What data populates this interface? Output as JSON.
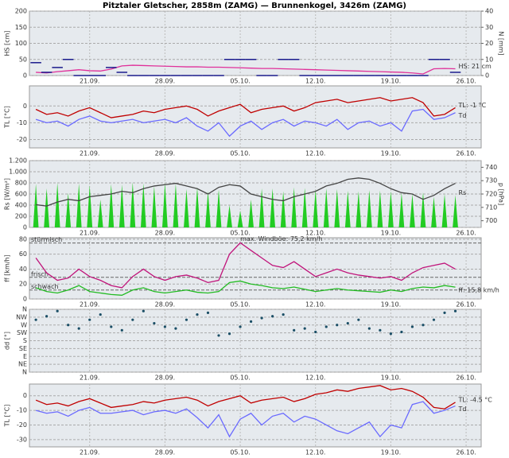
{
  "title": "Pitztaler Gletscher, 2858m (ZAMG) — Brunnenkogel, 3426m (ZAMG)",
  "chart_data": [
    {
      "type": "line",
      "ylabel": "HS [cm]",
      "y2label": "N [mm]",
      "x": [
        16,
        17,
        18,
        19,
        20,
        21,
        22,
        23,
        24,
        25,
        26,
        27,
        28,
        29,
        30,
        31,
        32,
        33,
        34,
        35,
        36,
        37,
        38,
        39,
        40,
        41,
        42,
        43,
        44,
        45,
        46,
        47,
        48,
        49,
        50,
        51,
        52,
        53,
        54,
        55
      ],
      "xlim": [
        15.4,
        57.4
      ],
      "xticks": [
        {
          "value": 21,
          "label": "21.09."
        },
        {
          "value": 28,
          "label": "28.09."
        },
        {
          "value": 35,
          "label": "05.10."
        },
        {
          "value": 42,
          "label": "12.10."
        },
        {
          "value": 49,
          "label": "19.10."
        },
        {
          "value": 56,
          "label": "26.10."
        }
      ],
      "ylim": [
        0,
        200
      ],
      "yticks": [
        0,
        50,
        100,
        150,
        200
      ],
      "y2lim": [
        0,
        40
      ],
      "y2ticks": [
        0,
        10,
        20,
        30,
        40
      ],
      "ycolor": "#e0309a",
      "y2color": "#1a1a8c",
      "series": [
        {
          "name": "HS",
          "kind": "line",
          "color": "#e0309a",
          "values": [
            10,
            8,
            12,
            15,
            18,
            15,
            14,
            20,
            30,
            32,
            31,
            30,
            29,
            28,
            27,
            27,
            26,
            26,
            25,
            24,
            23,
            22,
            22,
            21,
            20,
            19,
            18,
            17,
            16,
            15,
            14,
            13,
            12,
            11,
            10,
            8,
            5,
            21,
            22,
            21
          ]
        },
        {
          "name": "N",
          "kind": "step",
          "axis": "y2",
          "color": "#1a1a8c",
          "values": [
            8,
            2,
            5,
            10,
            0,
            0,
            0,
            5,
            2,
            0,
            0,
            0,
            0,
            0,
            0,
            0,
            0,
            0,
            10,
            10,
            10,
            0,
            0,
            10,
            10,
            0,
            0,
            0,
            0,
            0,
            0,
            0,
            0,
            0,
            0,
            0,
            0,
            10,
            10,
            2
          ]
        }
      ],
      "annotations": [
        {
          "text": "HS: 21 cm",
          "series": 0,
          "at": "last"
        }
      ]
    },
    {
      "type": "line",
      "ylabel": "TL [°C]",
      "x": [
        16,
        17,
        18,
        19,
        20,
        21,
        22,
        23,
        24,
        25,
        26,
        27,
        28,
        29,
        30,
        31,
        32,
        33,
        34,
        35,
        36,
        37,
        38,
        39,
        40,
        41,
        42,
        43,
        44,
        45,
        46,
        47,
        48,
        49,
        50,
        51,
        52,
        53,
        54,
        55
      ],
      "xlim": [
        15.4,
        57.4
      ],
      "xticks": [
        {
          "value": 21,
          "label": "21.09."
        },
        {
          "value": 28,
          "label": "28.09."
        },
        {
          "value": 35,
          "label": "05.10."
        },
        {
          "value": 42,
          "label": "12.10."
        },
        {
          "value": 49,
          "label": "19.10."
        },
        {
          "value": 56,
          "label": "26.10."
        }
      ],
      "ylim": [
        -25,
        12
      ],
      "yticks": [
        -20,
        -10,
        0
      ],
      "ycolor": "#c00000",
      "series": [
        {
          "name": "TL",
          "kind": "line",
          "color": "#c00000",
          "values": [
            -2,
            -5,
            -4,
            -6,
            -3,
            -1,
            -4,
            -7,
            -6,
            -5,
            -3,
            -4,
            -2,
            -1,
            0,
            -2,
            -6,
            -3,
            -1,
            1,
            -4,
            -2,
            -1,
            0,
            -3,
            -1,
            2,
            3,
            4,
            2,
            3,
            4,
            5,
            3,
            4,
            5,
            2,
            -6,
            -5,
            -1
          ]
        },
        {
          "name": "Td",
          "kind": "line",
          "color": "#6a6aff",
          "values": [
            -8,
            -10,
            -9,
            -12,
            -8,
            -6,
            -9,
            -10,
            -9,
            -8,
            -10,
            -9,
            -8,
            -10,
            -7,
            -12,
            -15,
            -10,
            -18,
            -12,
            -9,
            -14,
            -10,
            -8,
            -12,
            -9,
            -10,
            -12,
            -8,
            -14,
            -10,
            -9,
            -12,
            -10,
            -15,
            -3,
            -2,
            -8,
            -7,
            -4
          ]
        }
      ],
      "annotations": [
        {
          "text": "TL: -1 °C",
          "series": 0,
          "at": "last"
        },
        {
          "text": "Td",
          "series": 1,
          "at": "last"
        }
      ]
    },
    {
      "type": "line",
      "ylabel": "Rs [W/m²]",
      "y2label": "p [hPa]",
      "x": [
        16,
        17,
        18,
        19,
        20,
        21,
        22,
        23,
        24,
        25,
        26,
        27,
        28,
        29,
        30,
        31,
        32,
        33,
        34,
        35,
        36,
        37,
        38,
        39,
        40,
        41,
        42,
        43,
        44,
        45,
        46,
        47,
        48,
        49,
        50,
        51,
        52,
        53,
        54,
        55
      ],
      "xlim": [
        15.4,
        57.4
      ],
      "xticks": [
        {
          "value": 21,
          "label": "21.09."
        },
        {
          "value": 28,
          "label": "28.09."
        },
        {
          "value": 35,
          "label": "05.10."
        },
        {
          "value": 42,
          "label": "12.10."
        },
        {
          "value": 49,
          "label": "19.10."
        },
        {
          "value": 56,
          "label": "26.10."
        }
      ],
      "ylim": [
        0,
        1200
      ],
      "yticks": [
        0,
        200,
        400,
        600,
        800,
        {
          "value": 1000,
          "label": "1.000"
        },
        {
          "value": 1200,
          "label": "1.200"
        }
      ],
      "y2lim": [
        695,
        745
      ],
      "y2ticks": [
        700,
        710,
        720,
        730,
        740
      ],
      "ycolor": "#22aa22",
      "y2color": "#333333",
      "series": [
        {
          "name": "Rs",
          "kind": "bar",
          "color": "#22cc22",
          "values": [
            780,
            700,
            800,
            620,
            790,
            760,
            500,
            780,
            770,
            810,
            790,
            740,
            800,
            780,
            690,
            720,
            650,
            680,
            400,
            300,
            500,
            700,
            700,
            650,
            720,
            710,
            680,
            700,
            690,
            660,
            650,
            670,
            660,
            650,
            620,
            600,
            630,
            550,
            600,
            580
          ]
        },
        {
          "name": "p",
          "kind": "line",
          "axis": "y2",
          "color": "#444444",
          "values": [
            712,
            711,
            714,
            716,
            715,
            718,
            719,
            720,
            722,
            721,
            724,
            726,
            727,
            728,
            726,
            724,
            720,
            725,
            727,
            726,
            720,
            718,
            716,
            715,
            718,
            720,
            722,
            726,
            728,
            731,
            732,
            731,
            728,
            724,
            721,
            720,
            716,
            719,
            724,
            728
          ]
        }
      ],
      "annotations": [
        {
          "text": "Rs",
          "series": 0,
          "at": "last"
        }
      ]
    },
    {
      "type": "line",
      "ylabel": "ff [km/h]",
      "x": [
        16,
        17,
        18,
        19,
        20,
        21,
        22,
        23,
        24,
        25,
        26,
        27,
        28,
        29,
        30,
        31,
        32,
        33,
        34,
        35,
        36,
        37,
        38,
        39,
        40,
        41,
        42,
        43,
        44,
        45,
        46,
        47,
        48,
        49,
        50,
        51,
        52,
        53,
        54,
        55
      ],
      "xlim": [
        15.4,
        57.4
      ],
      "xticks": [
        {
          "value": 21,
          "label": "21.09."
        },
        {
          "value": 28,
          "label": "28.09."
        },
        {
          "value": 35,
          "label": "05.10."
        },
        {
          "value": 42,
          "label": "12.10."
        },
        {
          "value": 49,
          "label": "19.10."
        },
        {
          "value": 56,
          "label": "26.10."
        }
      ],
      "ylim": [
        0,
        82
      ],
      "yticks": [
        0,
        20,
        40,
        60,
        80
      ],
      "ycolor": "#22aa22",
      "levels": [
        {
          "value": 75,
          "label": "stürmisch"
        },
        {
          "value": 29,
          "label": "frisch"
        },
        {
          "value": 12,
          "label": "schwach"
        }
      ],
      "series": [
        {
          "name": "Böen",
          "kind": "line",
          "color": "#c0147a",
          "values": [
            55,
            35,
            25,
            28,
            40,
            30,
            25,
            18,
            15,
            30,
            40,
            30,
            25,
            30,
            32,
            28,
            22,
            25,
            60,
            75.2,
            65,
            55,
            45,
            42,
            50,
            40,
            30,
            35,
            40,
            35,
            32,
            30,
            28,
            30,
            25,
            35,
            42,
            45,
            48,
            40
          ]
        },
        {
          "name": "ff",
          "kind": "line",
          "color": "#22bb22",
          "values": [
            15,
            10,
            8,
            12,
            18,
            10,
            8,
            6,
            5,
            12,
            15,
            10,
            8,
            10,
            12,
            9,
            8,
            10,
            22,
            24,
            20,
            18,
            15,
            14,
            16,
            13,
            10,
            12,
            14,
            12,
            11,
            10,
            9,
            12,
            10,
            14,
            16,
            15,
            18,
            15.8
          ]
        }
      ],
      "annotations": [
        {
          "text": "max. Windböe: 75,2 km/h",
          "series": 0,
          "at": "max"
        },
        {
          "text": "ff: 15,8 km/h",
          "series": 1,
          "at": "last"
        }
      ]
    },
    {
      "type": "scatter",
      "ylabel": "dd [°]",
      "x": [
        16,
        17,
        18,
        19,
        20,
        21,
        22,
        23,
        24,
        25,
        26,
        27,
        28,
        29,
        30,
        31,
        32,
        33,
        34,
        35,
        36,
        37,
        38,
        39,
        40,
        41,
        42,
        43,
        44,
        45,
        46,
        47,
        48,
        49,
        50,
        51,
        52,
        53,
        54,
        55
      ],
      "xlim": [
        15.4,
        57.4
      ],
      "xticks": [
        {
          "value": 21,
          "label": "21.09."
        },
        {
          "value": 28,
          "label": "28.09."
        },
        {
          "value": 35,
          "label": "05.10."
        },
        {
          "value": 42,
          "label": "12.10."
        },
        {
          "value": 49,
          "label": "19.10."
        },
        {
          "value": 56,
          "label": "26.10."
        }
      ],
      "ylim": [
        0,
        360
      ],
      "yticks": [
        {
          "value": 0,
          "label": "N"
        },
        {
          "value": 45,
          "label": "NE"
        },
        {
          "value": 90,
          "label": "E"
        },
        {
          "value": 135,
          "label": "SE"
        },
        {
          "value": 180,
          "label": "S"
        },
        {
          "value": 225,
          "label": "SW"
        },
        {
          "value": 270,
          "label": "W"
        },
        {
          "value": 315,
          "label": "NW"
        },
        {
          "value": 360,
          "label": "N"
        }
      ],
      "ycolor": "#1a4e66",
      "series": [
        {
          "name": "dd",
          "kind": "scatter",
          "color": "#1a4e66",
          "values": [
            300,
            320,
            350,
            270,
            250,
            300,
            330,
            260,
            240,
            300,
            350,
            280,
            260,
            250,
            300,
            330,
            340,
            210,
            220,
            260,
            290,
            310,
            320,
            330,
            240,
            250,
            230,
            260,
            270,
            280,
            300,
            250,
            240,
            220,
            230,
            260,
            270,
            300,
            340,
            350
          ]
        }
      ],
      "annotations": []
    },
    {
      "type": "line",
      "ylabel": "TL [°C]",
      "x": [
        16,
        17,
        18,
        19,
        20,
        21,
        22,
        23,
        24,
        25,
        26,
        27,
        28,
        29,
        30,
        31,
        32,
        33,
        34,
        35,
        36,
        37,
        38,
        39,
        40,
        41,
        42,
        43,
        44,
        45,
        46,
        47,
        48,
        49,
        50,
        51,
        52,
        53,
        54,
        55
      ],
      "xlim": [
        15.4,
        57.4
      ],
      "xticks": [
        {
          "value": 21,
          "label": "21.09."
        },
        {
          "value": 28,
          "label": "28.09."
        },
        {
          "value": 35,
          "label": "05.10."
        },
        {
          "value": 42,
          "label": "12.10."
        },
        {
          "value": 49,
          "label": "19.10."
        },
        {
          "value": 56,
          "label": "26.10."
        }
      ],
      "ylim": [
        -35,
        8
      ],
      "yticks": [
        -30,
        -20,
        -10,
        0
      ],
      "ycolor": "#c00000",
      "series": [
        {
          "name": "TL",
          "kind": "line",
          "color": "#c00000",
          "values": [
            -3,
            -6,
            -5,
            -7,
            -4,
            -2,
            -5,
            -8,
            -7,
            -6,
            -4,
            -5,
            -3,
            -2,
            -1,
            -3,
            -7,
            -4,
            -2,
            0,
            -5,
            -3,
            -2,
            -1,
            -4,
            -2,
            1,
            2,
            4,
            3,
            5,
            6,
            7,
            4,
            5,
            3,
            -1,
            -8,
            -9,
            -4.5
          ]
        },
        {
          "name": "Td",
          "kind": "line",
          "color": "#6a6aff",
          "values": [
            -10,
            -12,
            -11,
            -14,
            -10,
            -8,
            -12,
            -12,
            -11,
            -10,
            -13,
            -11,
            -10,
            -12,
            -9,
            -15,
            -22,
            -13,
            -28,
            -16,
            -12,
            -20,
            -14,
            -12,
            -18,
            -14,
            -16,
            -20,
            -24,
            -26,
            -22,
            -18,
            -28,
            -20,
            -22,
            -6,
            -4,
            -12,
            -10,
            -7
          ]
        }
      ],
      "annotations": [
        {
          "text": "TL: -4.5 °C",
          "series": 0,
          "at": "last"
        },
        {
          "text": "Td",
          "series": 1,
          "at": "last"
        }
      ]
    }
  ]
}
